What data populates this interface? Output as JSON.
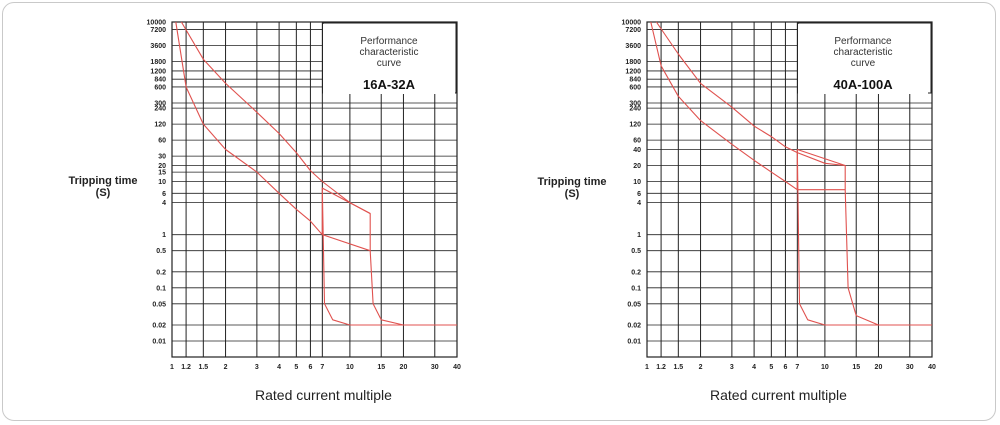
{
  "ylabel_line1": "Tripping time",
  "ylabel_line2": "(S)",
  "xlabel": "Rated current multiple",
  "box_title": [
    "Performance",
    "characteristic",
    "curve"
  ],
  "chart_data": [
    {
      "type": "line",
      "range_label": "16A-32A",
      "x_ticks": [
        "1",
        "1.2",
        "1.5",
        "2",
        "3",
        "4",
        "5",
        "6",
        "7",
        "10",
        "15",
        "20",
        "30",
        "40"
      ],
      "x_scale": "log",
      "xlim": [
        1,
        40
      ],
      "y_ticks": [
        "10000",
        "7200",
        "3600",
        "1800",
        "1200",
        "840",
        "600",
        "300",
        "240",
        "120",
        "60",
        "30",
        "20",
        "15",
        "10",
        "6",
        "4",
        "1",
        "0.5",
        "0.2",
        "0.1",
        "0.05",
        "0.02",
        "0.01"
      ],
      "y_scale": "log",
      "ylim": [
        0.005,
        10000
      ],
      "series": [
        {
          "x": [
            1.05,
            1.2,
            1.5,
            2,
            3,
            4,
            5,
            6,
            7,
            7,
            7.2,
            8,
            10,
            15,
            20,
            40
          ],
          "y": [
            10000,
            600,
            120,
            40,
            15,
            6,
            3,
            1.8,
            1.0,
            7.5,
            0.05,
            0.025,
            0.02,
            0.02,
            0.02,
            0.02
          ]
        },
        {
          "x": [
            1.13,
            1.5,
            2,
            3,
            4,
            5,
            6,
            7,
            10,
            13,
            13,
            13.5,
            15,
            20,
            40
          ],
          "y": [
            10000,
            2000,
            700,
            200,
            80,
            35,
            16,
            10,
            4,
            2.5,
            0.5,
            0.05,
            0.025,
            0.02,
            0.02
          ]
        }
      ],
      "connectors": [
        [
          [
            7,
            7.5
          ],
          [
            13,
            2.5
          ]
        ],
        [
          [
            7,
            1.0
          ],
          [
            13,
            0.5
          ]
        ]
      ]
    },
    {
      "type": "line",
      "range_label": "40A-100A",
      "x_ticks": [
        "1",
        "1.2",
        "1.5",
        "2",
        "3",
        "4",
        "5",
        "6",
        "7",
        "10",
        "15",
        "20",
        "30",
        "40"
      ],
      "x_scale": "log",
      "xlim": [
        1,
        40
      ],
      "y_ticks": [
        "10000",
        "7200",
        "3600",
        "1800",
        "1200",
        "840",
        "600",
        "300",
        "240",
        "120",
        "60",
        "40",
        "20",
        "10",
        "6",
        "4",
        "1",
        "0.5",
        "0.2",
        "0.1",
        "0.05",
        "0.02",
        "0.01"
      ],
      "y_scale": "log",
      "ylim": [
        0.005,
        10000
      ],
      "series": [
        {
          "x": [
            1.05,
            1.2,
            1.5,
            2,
            3,
            4,
            5,
            6,
            7,
            7,
            7.2,
            8,
            10,
            15,
            20,
            40
          ],
          "y": [
            10000,
            1500,
            400,
            140,
            50,
            25,
            15,
            10,
            7,
            40,
            0.05,
            0.025,
            0.02,
            0.02,
            0.02,
            0.02
          ]
        },
        {
          "x": [
            1.13,
            1.5,
            2,
            3,
            4,
            5,
            6,
            7,
            10,
            13,
            13,
            13.5,
            15,
            20,
            40
          ],
          "y": [
            10000,
            2500,
            700,
            250,
            110,
            70,
            45,
            35,
            22,
            20,
            7,
            0.1,
            0.03,
            0.02,
            0.02
          ]
        }
      ],
      "connectors": [
        [
          [
            7,
            40
          ],
          [
            13,
            20
          ]
        ],
        [
          [
            7,
            7
          ],
          [
            13,
            7
          ]
        ]
      ]
    }
  ]
}
